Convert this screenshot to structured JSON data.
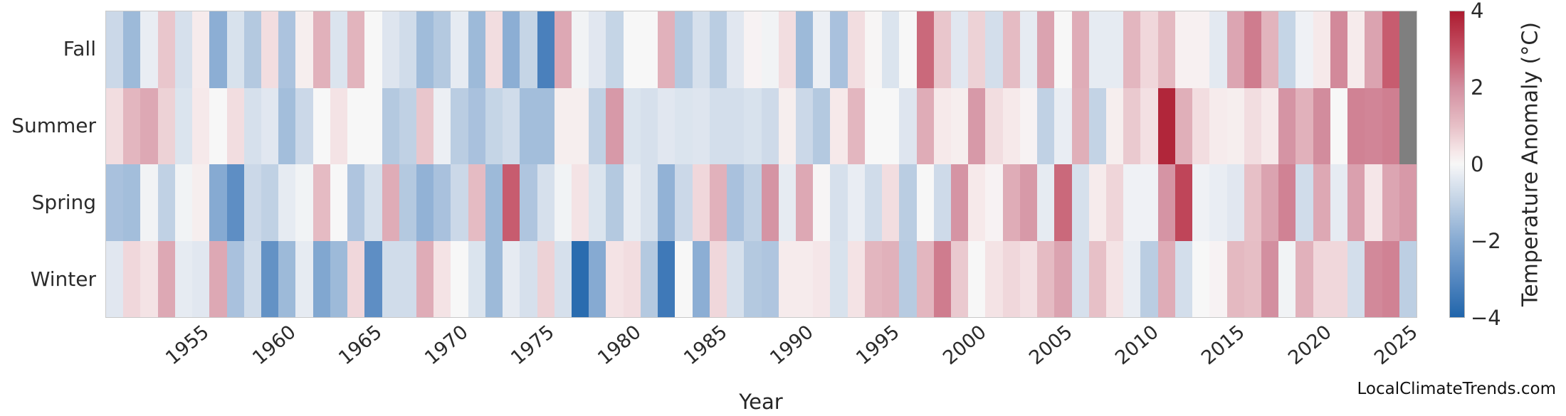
{
  "chart_data": {
    "type": "heatmap",
    "title": "",
    "xlabel": "Year",
    "year_start": 1950,
    "year_end": 2025,
    "rows": [
      "Fall",
      "Summer",
      "Spring",
      "Winter"
    ],
    "series": [
      {
        "name": "Fall",
        "values": [
          -0.8,
          -1.6,
          -0.25,
          0.9,
          -0.6,
          0.25,
          -1.9,
          -0.55,
          -1.2,
          0.5,
          -1.35,
          0.2,
          1.3,
          -0.5,
          1.25,
          0,
          -0.45,
          -0.7,
          -1.55,
          -1.2,
          -0.3,
          -1.6,
          0.5,
          -1.9,
          -0.9,
          -3.2,
          1.5,
          -0.1,
          -0.4,
          -0.9,
          0,
          0,
          1.3,
          -1.2,
          -0.6,
          -1.1,
          -0.4,
          0.1,
          -0.1,
          0.5,
          -1.6,
          -0.2,
          -1.4,
          0.5,
          0.05,
          -0.5,
          0,
          2.6,
          0.9,
          -0.4,
          0.7,
          -0.65,
          1.1,
          -0.3,
          1.6,
          0,
          1.4,
          -0.3,
          -0.3,
          1.2,
          0.6,
          1.15,
          0.15,
          0.15,
          -0.35,
          1.55,
          2.3,
          1.25,
          -0.9,
          -0.15,
          0.3,
          2.1,
          0.25,
          1.6,
          2.8,
          null
        ]
      },
      {
        "name": "Summer",
        "values": [
          0.5,
          1.2,
          1.5,
          0.7,
          -0.5,
          0.3,
          0,
          0.5,
          -0.6,
          -0.4,
          -1.5,
          -0.8,
          0,
          0.4,
          0,
          0,
          -1.2,
          -1.0,
          0.9,
          -0.2,
          -1.1,
          -1.4,
          -0.9,
          -0.7,
          -1.5,
          -1.5,
          0.2,
          0.2,
          -1.0,
          1.8,
          -0.5,
          -0.6,
          -0.4,
          -0.5,
          -0.45,
          -0.65,
          -0.65,
          -0.55,
          -0.75,
          0.2,
          -0.8,
          -1.2,
          0.3,
          1.2,
          0,
          0,
          -0.45,
          1.4,
          0.3,
          0.2,
          1.8,
          0.5,
          0.3,
          0.1,
          -1.0,
          -0.25,
          1.35,
          -0.95,
          0.2,
          0.85,
          0.45,
          3.8,
          1.35,
          0.5,
          0.25,
          0.2,
          0.5,
          0.3,
          1.9,
          1.3,
          2.05,
          0,
          2.2,
          2.15,
          2.25,
          null
        ]
      },
      {
        "name": "Spring",
        "values": [
          -1.4,
          -1.5,
          -0.1,
          -1.0,
          -0.1,
          0.2,
          -2.0,
          -2.8,
          -0.8,
          -1.0,
          -0.3,
          -0.1,
          1.1,
          0,
          -1.3,
          -0.6,
          1.4,
          -1.2,
          -1.8,
          -1.4,
          -0.8,
          1.1,
          -1.6,
          2.8,
          -1.3,
          -0.6,
          -0.1,
          0.4,
          -0.5,
          -1.2,
          -0.3,
          -0.6,
          -1.8,
          -0.8,
          0.6,
          1.3,
          -1.4,
          -1.0,
          1.9,
          -0.3,
          1.5,
          0.05,
          -0.6,
          -0.25,
          -0.7,
          0.5,
          -1.1,
          0,
          -0.75,
          1.9,
          0.3,
          0.1,
          1.4,
          1.8,
          -0.3,
          2.6,
          -0.6,
          0.25,
          0.65,
          -0.15,
          -0.15,
          1.9,
          3.2,
          -0.15,
          -0.25,
          -0.4,
          1.0,
          1.6,
          2.2,
          -0.7,
          1.5,
          -0.3,
          1.65,
          0.35,
          1.55,
          1.8
        ]
      },
      {
        "name": "Winter",
        "values": [
          -0.4,
          0.6,
          0.4,
          1.5,
          -0.3,
          -0.4,
          1.5,
          -1.4,
          -0.7,
          -2.7,
          -1.6,
          -0.3,
          -2.1,
          -1.6,
          0.6,
          -2.8,
          -0.7,
          -0.7,
          1.4,
          0.4,
          0,
          -0.5,
          -1.6,
          -0.3,
          -0.6,
          0.7,
          -0.6,
          -3.8,
          -2.0,
          0.4,
          0.5,
          -1.2,
          -3.4,
          0,
          -1.9,
          0.6,
          -0.6,
          -1.2,
          -1.3,
          0.25,
          0.25,
          0.35,
          -0.55,
          0.4,
          1.2,
          1.3,
          -1.15,
          1.2,
          2.3,
          0.85,
          0,
          0.4,
          0.6,
          0.45,
          1.1,
          1.6,
          -0.6,
          1.0,
          0.4,
          -0.25,
          -1.1,
          1.4,
          -0.65,
          0,
          0.1,
          1.15,
          1.05,
          2.0,
          -0.1,
          1.3,
          0.6,
          0.6,
          -0.65,
          2.1,
          2.2,
          -1.05
        ]
      }
    ],
    "x_tick_labels": [
      "1955",
      "1960",
      "1965",
      "1970",
      "1975",
      "1980",
      "1985",
      "1990",
      "1995",
      "2000",
      "2005",
      "2010",
      "2015",
      "2020",
      "2025"
    ],
    "colorbar": {
      "label": "Temperature Anomaly (°C)",
      "tick_labels": [
        "4",
        "2",
        "0",
        "−2",
        "−4"
      ],
      "tick_values": [
        4,
        2,
        0,
        -2,
        -4
      ],
      "vmin": -4,
      "vmax": 4
    },
    "colormap_stops": [
      [
        -4,
        "#2065ab"
      ],
      [
        -3,
        "#5487c0"
      ],
      [
        -2,
        "#86aad2"
      ],
      [
        -1,
        "#c0d1e4"
      ],
      [
        -0.3,
        "#e6ebf2"
      ],
      [
        0,
        "#f7f7f7"
      ],
      [
        0.3,
        "#f6e9ea"
      ],
      [
        1,
        "#e7c0c7"
      ],
      [
        2,
        "#d38fa0"
      ],
      [
        3,
        "#c44f63"
      ],
      [
        4,
        "#ac1c30"
      ]
    ],
    "missing_color": "#7f7f7f",
    "grid": false,
    "legend_position": "right"
  },
  "watermark": "LocalClimateTrends.com"
}
